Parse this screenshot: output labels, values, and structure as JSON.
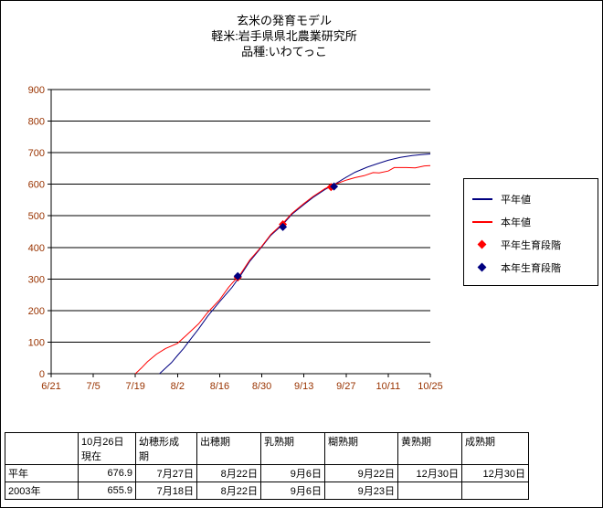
{
  "page": {
    "background": "#ffffff",
    "border_color": "#000000"
  },
  "chart": {
    "title_lines": [
      "玄米の発育モデル",
      "軽米:岩手県県北農業研究所",
      "品種:いわてっこ"
    ],
    "axis_label_color": "#993300",
    "axis_line_color": "#000000",
    "gridline_color": "#000000",
    "legend": [
      {
        "label": "平年値",
        "type": "line",
        "color": "#000080"
      },
      {
        "label": "本年値",
        "type": "line",
        "color": "#ff0000"
      },
      {
        "label": "平年生育段階",
        "type": "diamond",
        "color": "#ff0000"
      },
      {
        "label": "本年生育段階",
        "type": "diamond",
        "color": "#000080"
      }
    ]
  },
  "chart_data": {
    "type": "line",
    "title": "玄米の発育モデル",
    "subtitle": "軽米:岩手県県北農業研究所 品種:いわてっこ",
    "xlabel": "",
    "ylabel": "",
    "x_unit": "days since 6/21",
    "x_tick_labels": [
      "6/21",
      "7/5",
      "7/19",
      "8/2",
      "8/16",
      "8/30",
      "9/13",
      "9/27",
      "10/11",
      "10/25"
    ],
    "x_tick_days": [
      0,
      14,
      28,
      42,
      56,
      70,
      84,
      98,
      112,
      126
    ],
    "xlim_days": [
      0,
      126
    ],
    "ylim": [
      0,
      900
    ],
    "y_ticks": [
      0,
      100,
      200,
      300,
      400,
      500,
      600,
      700,
      800,
      900
    ],
    "grid": "horizontal",
    "legend_position": "right",
    "series": [
      {
        "name": "平年値",
        "type": "line",
        "color": "#000080",
        "points": [
          [
            36,
            0
          ],
          [
            40,
            35
          ],
          [
            42,
            58
          ],
          [
            44,
            80
          ],
          [
            46,
            105
          ],
          [
            49,
            142
          ],
          [
            52,
            182
          ],
          [
            56,
            228
          ],
          [
            60,
            272
          ],
          [
            63,
            312
          ],
          [
            66,
            356
          ],
          [
            70,
            402
          ],
          [
            73,
            438
          ],
          [
            77,
            473
          ],
          [
            80,
            505
          ],
          [
            84,
            536
          ],
          [
            87,
            558
          ],
          [
            91,
            583
          ],
          [
            94,
            599
          ],
          [
            98,
            622
          ],
          [
            101,
            638
          ],
          [
            105,
            654
          ],
          [
            108,
            664
          ],
          [
            112,
            676
          ],
          [
            116,
            685
          ],
          [
            120,
            691
          ],
          [
            123,
            694
          ],
          [
            126,
            696
          ]
        ]
      },
      {
        "name": "本年値",
        "type": "line",
        "color": "#ff0000",
        "points": [
          [
            28,
            0
          ],
          [
            30,
            18
          ],
          [
            32,
            38
          ],
          [
            35,
            62
          ],
          [
            38,
            80
          ],
          [
            42,
            96
          ],
          [
            45,
            122
          ],
          [
            49,
            158
          ],
          [
            52,
            194
          ],
          [
            56,
            234
          ],
          [
            59,
            274
          ],
          [
            63,
            317
          ],
          [
            66,
            360
          ],
          [
            70,
            404
          ],
          [
            73,
            441
          ],
          [
            77,
            476
          ],
          [
            80,
            508
          ],
          [
            84,
            539
          ],
          [
            87,
            561
          ],
          [
            91,
            586
          ],
          [
            94,
            599
          ],
          [
            98,
            613
          ],
          [
            101,
            621
          ],
          [
            104,
            627
          ],
          [
            107,
            637
          ],
          [
            109,
            636
          ],
          [
            112,
            642
          ],
          [
            114,
            653
          ],
          [
            118,
            653
          ],
          [
            121,
            652
          ],
          [
            124,
            658
          ],
          [
            126,
            659
          ]
        ]
      },
      {
        "name": "平年生育段階",
        "type": "scatter",
        "marker": "diamond",
        "color": "#ff0000",
        "points": [
          [
            62,
            305
          ],
          [
            77,
            473
          ],
          [
            93,
            591
          ]
        ]
      },
      {
        "name": "本年生育段階",
        "type": "scatter",
        "marker": "diamond",
        "color": "#000080",
        "points": [
          [
            62,
            309
          ],
          [
            77,
            465
          ],
          [
            94,
            593
          ]
        ]
      }
    ]
  },
  "table": {
    "headers": [
      "",
      "10月26日\n現在",
      "幼穂形成\n期",
      "出穂期",
      "乳熟期",
      "糊熟期",
      "黄熟期",
      "成熟期"
    ],
    "rows": [
      {
        "label": "平年",
        "values": [
          "676.9",
          "7月27日",
          "8月22日",
          "9月6日",
          "9月22日",
          "12月30日",
          "12月30日"
        ]
      },
      {
        "label": "2003年",
        "values": [
          "655.9",
          "7月18日",
          "8月22日",
          "9月6日",
          "9月23日",
          "",
          ""
        ]
      }
    ]
  }
}
